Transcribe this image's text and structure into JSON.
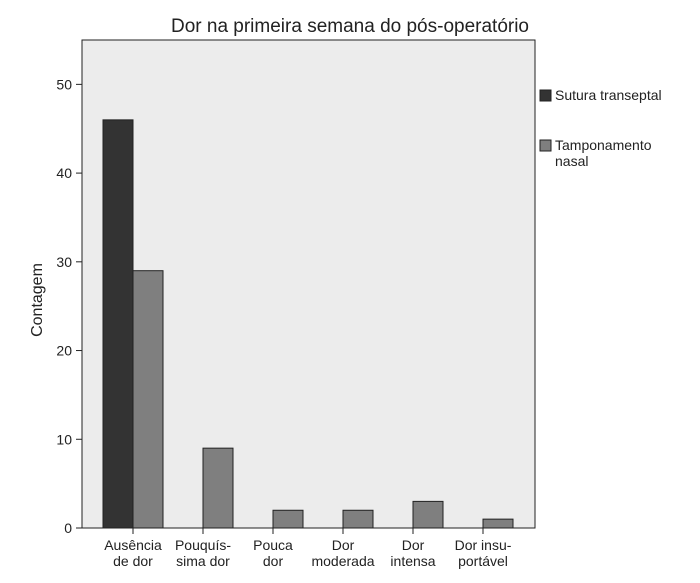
{
  "chart_data": {
    "type": "bar",
    "title": "Dor na primeira semana do pós-operatório",
    "ylabel": "Contagem",
    "categories": [
      [
        "Ausência",
        "de dor"
      ],
      [
        "Pouquís-",
        "sima dor"
      ],
      [
        "Pouca",
        "dor"
      ],
      [
        "Dor",
        "moderada"
      ],
      [
        "Dor",
        "intensa"
      ],
      [
        "Dor insu-",
        "portável"
      ]
    ],
    "series": [
      {
        "name": "Sutura transeptal",
        "color": "#333333",
        "values": [
          46,
          0,
          0,
          0,
          0,
          0
        ]
      },
      {
        "name": "Tamponamento nasal",
        "color": "#7f7f7f",
        "values": [
          29,
          9,
          2,
          2,
          3,
          1
        ]
      }
    ],
    "ylim": [
      0,
      55
    ],
    "yticks": [
      0,
      10,
      20,
      30,
      40,
      50
    ],
    "grid": false,
    "legend": "right"
  }
}
